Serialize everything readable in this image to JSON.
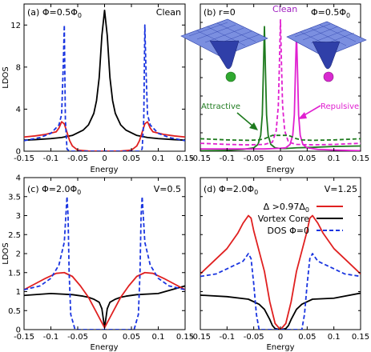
{
  "chart_data": [
    {
      "panel": "a",
      "type": "line",
      "label_prefix": "(a) Φ=0.5Φ",
      "label_sub": "0",
      "corner_text": "Clean",
      "xlabel": "Energy",
      "ylabel": "LDOS",
      "xlim": [
        -0.15,
        0.15
      ],
      "ylim": [
        0,
        14
      ],
      "xticks": [
        "-0.15",
        "-0.1",
        "-0.05",
        "0",
        "0.05",
        "0.1",
        "0.15"
      ],
      "yticks": [
        "0",
        "4",
        "8",
        "12"
      ],
      "series": [
        {
          "color": "#000000",
          "dash": "",
          "x": [
            -0.15,
            -0.13,
            -0.1,
            -0.08,
            -0.06,
            -0.04,
            -0.03,
            -0.02,
            -0.015,
            -0.01,
            -0.005,
            0,
            0.005,
            0.01,
            0.015,
            0.02,
            0.03,
            0.04,
            0.06,
            0.08,
            0.1,
            0.13,
            0.15
          ],
          "y": [
            1.05,
            1.1,
            1.2,
            1.3,
            1.5,
            2.0,
            2.5,
            3.6,
            4.8,
            7.0,
            11.0,
            13.4,
            11.0,
            7.0,
            4.8,
            3.6,
            2.5,
            2.0,
            1.5,
            1.3,
            1.2,
            1.1,
            1.05
          ]
        },
        {
          "color": "#e02020",
          "dash": "",
          "x": [
            -0.15,
            -0.13,
            -0.11,
            -0.09,
            -0.085,
            -0.08,
            -0.075,
            -0.07,
            -0.065,
            -0.06,
            -0.05,
            -0.03,
            0,
            0.03,
            0.05,
            0.06,
            0.065,
            0.07,
            0.075,
            0.08,
            0.085,
            0.09,
            0.11,
            0.13,
            0.15
          ],
          "y": [
            1.35,
            1.45,
            1.6,
            1.85,
            2.2,
            2.8,
            2.6,
            1.8,
            1.0,
            0.5,
            0.1,
            0.02,
            0,
            0.02,
            0.1,
            0.5,
            1.0,
            1.8,
            2.6,
            2.8,
            2.2,
            1.85,
            1.6,
            1.45,
            1.35
          ]
        },
        {
          "color": "#1a35e0",
          "dash": "5,3",
          "x": [
            -0.15,
            -0.12,
            -0.1,
            -0.085,
            -0.08,
            -0.077,
            -0.075,
            -0.073,
            -0.07,
            -0.065,
            0,
            0.065,
            0.07,
            0.073,
            0.075,
            0.077,
            0.08,
            0.085,
            0.1,
            0.12,
            0.15
          ],
          "y": [
            1.0,
            1.3,
            1.7,
            2.5,
            3.5,
            8.0,
            12.0,
            3.0,
            0.2,
            0,
            0,
            0,
            0.2,
            3.0,
            12.0,
            8.0,
            3.5,
            2.5,
            1.7,
            1.3,
            1.0
          ]
        }
      ]
    },
    {
      "panel": "b",
      "type": "line",
      "label": "(b) r=0",
      "xlabel": "Energy",
      "xlim": [
        -0.15,
        0.15
      ],
      "xticks": [
        "-0.15",
        "-0.1",
        "-0.05",
        "0",
        "0.05",
        "0.1",
        "0.15"
      ],
      "annotations": {
        "clean": "Clean",
        "phi_prefix": "Φ=0.5Φ",
        "phi_sub": "0",
        "attractive": "Attractive",
        "repulsive": "Repulsive"
      },
      "series": [
        {
          "color": "#1e7a1e",
          "dash": "",
          "x": [
            -0.15,
            -0.1,
            -0.07,
            -0.05,
            -0.042,
            -0.037,
            -0.034,
            -0.032,
            -0.03,
            -0.028,
            -0.026,
            -0.023,
            -0.018,
            -0.01,
            0,
            0.01,
            0.03,
            0.06,
            0.1,
            0.15
          ],
          "y": [
            0.02,
            0.04,
            0.08,
            0.15,
            0.3,
            0.7,
            1.6,
            3.5,
            5.5,
            3.5,
            1.6,
            0.7,
            0.3,
            0.15,
            0.12,
            0.12,
            0.15,
            0.17,
            0.21,
            0.23
          ]
        },
        {
          "color": "#e020d0",
          "dash": "",
          "x": [
            -0.15,
            -0.1,
            -0.06,
            -0.03,
            -0.01,
            0,
            0.01,
            0.018,
            0.023,
            0.026,
            0.028,
            0.03,
            0.032,
            0.034,
            0.037,
            0.042,
            0.05,
            0.07,
            0.1,
            0.15
          ],
          "y": [
            0.1,
            0.1,
            0.1,
            0.1,
            0.12,
            0.13,
            0.15,
            0.3,
            0.7,
            1.6,
            3.5,
            5.2,
            3.5,
            1.6,
            0.7,
            0.3,
            0.15,
            0.08,
            0.05,
            0.02
          ]
        },
        {
          "color": "#e020d0",
          "dash": "5,3",
          "x": [
            -0.15,
            -0.1,
            -0.06,
            -0.03,
            -0.015,
            -0.008,
            -0.004,
            -0.002,
            0,
            0.002,
            0.004,
            0.008,
            0.015,
            0.03,
            0.06,
            0.1,
            0.15
          ],
          "y": [
            0.35,
            0.3,
            0.28,
            0.3,
            0.4,
            0.9,
            2.0,
            3.8,
            5.8,
            3.8,
            2.0,
            0.9,
            0.4,
            0.3,
            0.28,
            0.3,
            0.35
          ]
        },
        {
          "color": "#1e7a1e",
          "dash": "5,3",
          "x": [
            -0.15,
            -0.1,
            -0.06,
            -0.04,
            -0.03,
            -0.02,
            -0.015,
            0,
            0.015,
            0.02,
            0.03,
            0.04,
            0.06,
            0.1,
            0.15
          ],
          "y": [
            0.55,
            0.5,
            0.48,
            0.5,
            0.55,
            0.65,
            0.7,
            0.7,
            0.7,
            0.65,
            0.55,
            0.5,
            0.48,
            0.5,
            0.55
          ]
        }
      ]
    },
    {
      "panel": "c",
      "type": "line",
      "label_prefix": "(c) Φ=2.0Φ",
      "label_sub": "0",
      "corner_text": "V=0.5",
      "xlabel": "Energy",
      "ylabel": "LDOS",
      "xlim": [
        -0.15,
        0.15
      ],
      "ylim": [
        0,
        4
      ],
      "xticks": [
        "-0.15",
        "-0.1",
        "-0.05",
        "0",
        "0.05",
        "0.1",
        "0.15"
      ],
      "yticks": [
        "0",
        "0.5",
        "1",
        "1.5",
        "2",
        "2.5",
        "3",
        "3.5",
        "4"
      ],
      "series": [
        {
          "color": "#000000",
          "dash": "",
          "x": [
            -0.15,
            -0.1,
            -0.06,
            -0.04,
            -0.03,
            -0.02,
            -0.01,
            -0.005,
            0,
            0.005,
            0.01,
            0.02,
            0.03,
            0.04,
            0.06,
            0.1,
            0.15
          ],
          "y": [
            0.9,
            0.95,
            0.92,
            0.88,
            0.85,
            0.8,
            0.72,
            0.55,
            0.05,
            0.55,
            0.72,
            0.8,
            0.85,
            0.88,
            0.92,
            0.95,
            1.15
          ]
        },
        {
          "color": "#e02020",
          "dash": "",
          "x": [
            -0.15,
            -0.13,
            -0.11,
            -0.09,
            -0.075,
            -0.06,
            -0.045,
            -0.03,
            -0.015,
            0,
            0.015,
            0.03,
            0.045,
            0.06,
            0.075,
            0.09,
            0.11,
            0.13,
            0.15
          ],
          "y": [
            1.05,
            1.2,
            1.35,
            1.48,
            1.5,
            1.4,
            1.15,
            0.85,
            0.45,
            0.05,
            0.45,
            0.85,
            1.15,
            1.4,
            1.5,
            1.48,
            1.35,
            1.2,
            1.05
          ]
        },
        {
          "color": "#1a35e0",
          "dash": "5,3",
          "x": [
            -0.15,
            -0.12,
            -0.1,
            -0.085,
            -0.075,
            -0.07,
            -0.068,
            -0.066,
            -0.063,
            -0.055,
            -0.04,
            0,
            0.04,
            0.055,
            0.063,
            0.066,
            0.068,
            0.07,
            0.075,
            0.085,
            0.1,
            0.12,
            0.15
          ],
          "y": [
            1.05,
            1.15,
            1.35,
            1.7,
            2.3,
            3.5,
            3.0,
            1.5,
            0.4,
            0,
            0,
            0,
            0,
            0,
            0.4,
            1.5,
            3.0,
            3.5,
            2.3,
            1.7,
            1.35,
            1.15,
            1.05
          ]
        }
      ]
    },
    {
      "panel": "d",
      "type": "line",
      "label_prefix": "(d) Φ=2.0Φ",
      "label_sub": "0",
      "corner_text": "V=1.25",
      "xlabel": "Energy",
      "xlim": [
        -0.15,
        0.15
      ],
      "ylim": [
        0,
        3
      ],
      "xticks": [
        "-0.15",
        "-0.1",
        "-0.05",
        "0",
        "0.05",
        "0.1",
        "0.15"
      ],
      "legend": {
        "position": "top-right",
        "items": [
          {
            "prefix": "Δ >0.97Δ",
            "sub": "0",
            "color": "#e02020",
            "dash": ""
          },
          {
            "prefix": "Vortex Core",
            "sub": "",
            "color": "#000000",
            "dash": ""
          },
          {
            "prefix": "DOS Φ=0",
            "sub": "",
            "color": "#1a35e0",
            "dash": "5,3"
          }
        ]
      },
      "series": [
        {
          "color": "#000000",
          "dash": "",
          "x": [
            -0.15,
            -0.1,
            -0.06,
            -0.04,
            -0.03,
            -0.02,
            -0.015,
            -0.01,
            0,
            0.01,
            0.015,
            0.02,
            0.03,
            0.04,
            0.06,
            0.1,
            0.15
          ],
          "y": [
            0.68,
            0.65,
            0.6,
            0.5,
            0.4,
            0.2,
            0.08,
            0.02,
            0,
            0.02,
            0.08,
            0.2,
            0.4,
            0.5,
            0.6,
            0.62,
            0.72
          ]
        },
        {
          "color": "#e02020",
          "dash": "",
          "x": [
            -0.15,
            -0.13,
            -0.1,
            -0.08,
            -0.07,
            -0.06,
            -0.055,
            -0.05,
            -0.04,
            -0.03,
            -0.02,
            -0.01,
            0,
            0.01,
            0.02,
            0.03,
            0.04,
            0.05,
            0.055,
            0.06,
            0.07,
            0.08,
            0.1,
            0.13,
            0.15
          ],
          "y": [
            1.1,
            1.3,
            1.6,
            1.9,
            2.1,
            2.25,
            2.2,
            1.95,
            1.55,
            1.15,
            0.55,
            0.12,
            0,
            0.12,
            0.55,
            1.15,
            1.55,
            1.95,
            2.2,
            2.25,
            2.1,
            1.9,
            1.6,
            1.3,
            1.1
          ]
        },
        {
          "color": "#1a35e0",
          "dash": "5,3",
          "x": [
            -0.15,
            -0.12,
            -0.09,
            -0.07,
            -0.06,
            -0.055,
            -0.05,
            -0.045,
            -0.04,
            -0.03,
            0,
            0.03,
            0.04,
            0.045,
            0.05,
            0.055,
            0.06,
            0.07,
            0.09,
            0.12,
            0.15
          ],
          "y": [
            1.05,
            1.1,
            1.25,
            1.35,
            1.5,
            1.4,
            0.9,
            0.3,
            0,
            0,
            0,
            0,
            0,
            0.3,
            0.9,
            1.4,
            1.5,
            1.35,
            1.25,
            1.1,
            1.05
          ]
        }
      ]
    }
  ]
}
